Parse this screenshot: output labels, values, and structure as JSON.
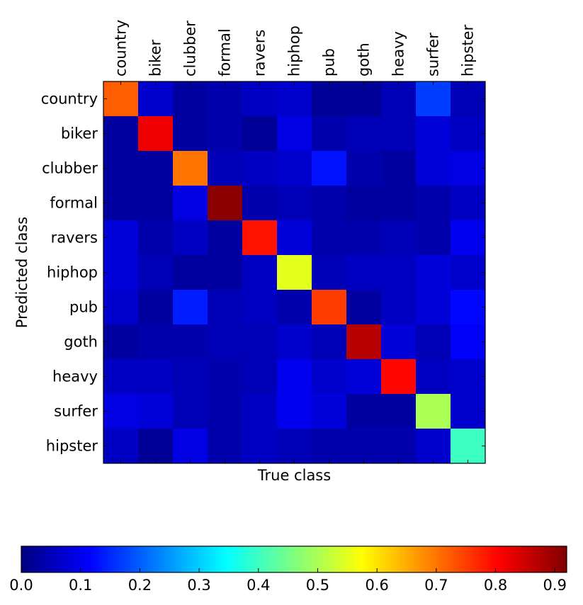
{
  "chart_data": {
    "type": "heatmap",
    "title": "",
    "xlabel": "True class",
    "ylabel": "Predicted class",
    "x_labels": [
      "country",
      "biker",
      "clubber",
      "formal",
      "ravers",
      "hiphop",
      "pub",
      "goth",
      "heavy",
      "surfer",
      "hipster"
    ],
    "y_labels": [
      "country",
      "biker",
      "clubber",
      "formal",
      "ravers",
      "hiphop",
      "pub",
      "goth",
      "heavy",
      "surfer",
      "hipster"
    ],
    "values": [
      [
        0.72,
        0.07,
        0.03,
        0.04,
        0.06,
        0.07,
        0.02,
        0.02,
        0.05,
        0.17,
        0.05
      ],
      [
        0.03,
        0.82,
        0.03,
        0.04,
        0.02,
        0.09,
        0.04,
        0.05,
        0.05,
        0.08,
        0.06
      ],
      [
        0.03,
        0.03,
        0.7,
        0.05,
        0.06,
        0.07,
        0.13,
        0.04,
        0.03,
        0.08,
        0.09
      ],
      [
        0.03,
        0.03,
        0.09,
        0.91,
        0.04,
        0.05,
        0.04,
        0.03,
        0.03,
        0.04,
        0.06
      ],
      [
        0.08,
        0.04,
        0.06,
        0.03,
        0.79,
        0.08,
        0.04,
        0.04,
        0.05,
        0.04,
        0.1
      ],
      [
        0.08,
        0.05,
        0.03,
        0.03,
        0.06,
        0.55,
        0.05,
        0.06,
        0.06,
        0.08,
        0.07
      ],
      [
        0.07,
        0.03,
        0.14,
        0.05,
        0.06,
        0.04,
        0.75,
        0.03,
        0.06,
        0.08,
        0.12
      ],
      [
        0.03,
        0.04,
        0.04,
        0.05,
        0.05,
        0.07,
        0.05,
        0.87,
        0.08,
        0.05,
        0.11
      ],
      [
        0.06,
        0.06,
        0.05,
        0.04,
        0.05,
        0.1,
        0.07,
        0.08,
        0.8,
        0.06,
        0.07
      ],
      [
        0.09,
        0.08,
        0.05,
        0.04,
        0.06,
        0.1,
        0.08,
        0.03,
        0.03,
        0.5,
        0.07
      ],
      [
        0.06,
        0.02,
        0.09,
        0.04,
        0.06,
        0.05,
        0.04,
        0.04,
        0.04,
        0.07,
        0.4
      ]
    ],
    "colormap": "jet",
    "vmin": 0.0,
    "vmax": 0.92,
    "colorbar": {
      "orientation": "horizontal",
      "ticks": [
        0.0,
        0.1,
        0.2,
        0.3,
        0.4,
        0.5,
        0.6,
        0.7,
        0.8,
        0.9
      ],
      "tick_labels": [
        "0.0",
        "0.1",
        "0.2",
        "0.3",
        "0.4",
        "0.5",
        "0.6",
        "0.7",
        "0.8",
        "0.9"
      ]
    },
    "grid": false,
    "legend": "none"
  }
}
